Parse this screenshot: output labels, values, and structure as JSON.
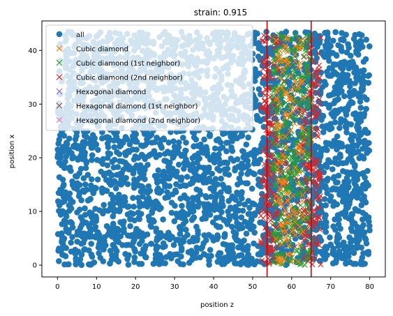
{
  "chart_data": {
    "type": "scatter",
    "title": "strain: 0.915",
    "xlabel": "position z",
    "ylabel": "position x",
    "xlim": [
      -4,
      84
    ],
    "ylim": [
      -2.2,
      45.5
    ],
    "xticks": [
      0,
      10,
      20,
      30,
      40,
      50,
      60,
      70,
      80
    ],
    "yticks": [
      0,
      10,
      20,
      30,
      40
    ],
    "legend_position": "top-left",
    "grid": false,
    "colors": {
      "all": "#1f77b4",
      "cubic": "#ff7f0e",
      "cubic_1st": "#2ca02c",
      "cubic_2nd": "#d62728",
      "hex": "#9467bd",
      "hex_1st": "#8c564b",
      "hex_2nd": "#e377c2",
      "vline": "#cc0000"
    },
    "series": [
      {
        "name": "all",
        "marker": "circle",
        "x_range": [
          0,
          80
        ],
        "y_range": [
          0,
          43.5
        ],
        "density": "uniform dense grid of atoms"
      },
      {
        "name": "Cubic diamond",
        "marker": "x",
        "x_range": [
          56,
          63
        ],
        "y_range": [
          0,
          43
        ]
      },
      {
        "name": "Cubic diamond (1st neighbor)",
        "marker": "x",
        "x_range": [
          55,
          65
        ],
        "y_range": [
          0,
          43
        ]
      },
      {
        "name": "Cubic diamond (2nd neighbor)",
        "marker": "x",
        "x_range": [
          52,
          67.5
        ],
        "y_range": [
          0,
          43
        ]
      },
      {
        "name": "Hexagonal diamond",
        "marker": "x",
        "x_range": [],
        "y_range": []
      },
      {
        "name": "Hexagonal diamond (1st neighbor)",
        "marker": "x",
        "x_range": [],
        "y_range": []
      },
      {
        "name": "Hexagonal diamond (2nd neighbor)",
        "marker": "x",
        "x_range": [],
        "y_range": []
      }
    ],
    "vlines": [
      53.7,
      65.0
    ]
  }
}
